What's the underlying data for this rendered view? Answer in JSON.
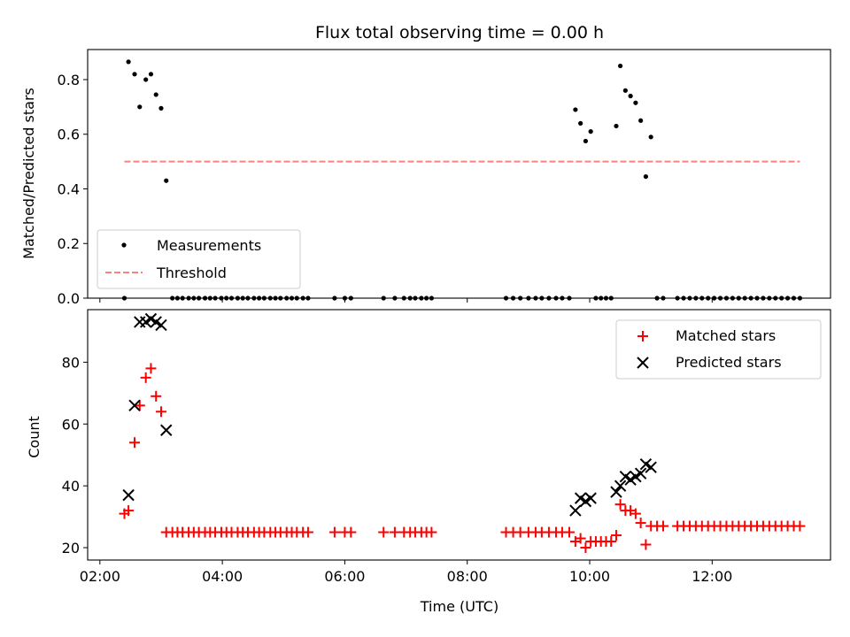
{
  "chart_data": [
    {
      "type": "scatter",
      "title": "Flux total observing time = 0.00 h",
      "xlabel": "",
      "ylabel": "Matched/Predicted stars",
      "xlim": [
        "01:48",
        "13:56"
      ],
      "ylim": [
        0,
        0.91
      ],
      "yticks": [
        "0.0",
        "0.2",
        "0.4",
        "0.6",
        "0.8"
      ],
      "xticks": [
        "02:00",
        "04:00",
        "06:00",
        "08:00",
        "10:00",
        "12:00"
      ],
      "legend_position": "lower-left",
      "series": [
        {
          "name": "Measurements",
          "kind": "scatter",
          "color": "#000000",
          "points": [
            [
              "02:24",
              0.0
            ],
            [
              "02:28",
              0.865
            ],
            [
              "02:34",
              0.82
            ],
            [
              "02:39",
              0.7
            ],
            [
              "02:45",
              0.8
            ],
            [
              "02:50",
              0.82
            ],
            [
              "02:55",
              0.745
            ],
            [
              "03:00",
              0.695
            ],
            [
              "03:05",
              0.43
            ],
            [
              "03:11",
              0.0
            ],
            [
              "03:16",
              0.0
            ],
            [
              "03:21",
              0.0
            ],
            [
              "03:27",
              0.0
            ],
            [
              "03:32",
              0.0
            ],
            [
              "03:37",
              0.0
            ],
            [
              "03:43",
              0.0
            ],
            [
              "03:48",
              0.0
            ],
            [
              "03:53",
              0.0
            ],
            [
              "03:59",
              0.0
            ],
            [
              "04:04",
              0.0
            ],
            [
              "04:09",
              0.0
            ],
            [
              "04:15",
              0.0
            ],
            [
              "04:20",
              0.0
            ],
            [
              "04:25",
              0.0
            ],
            [
              "04:31",
              0.0
            ],
            [
              "04:36",
              0.0
            ],
            [
              "04:41",
              0.0
            ],
            [
              "04:47",
              0.0
            ],
            [
              "04:52",
              0.0
            ],
            [
              "04:57",
              0.0
            ],
            [
              "05:03",
              0.0
            ],
            [
              "05:08",
              0.0
            ],
            [
              "05:13",
              0.0
            ],
            [
              "05:19",
              0.0
            ],
            [
              "05:24",
              0.0
            ],
            [
              "05:50",
              0.0
            ],
            [
              "06:00",
              0.0
            ],
            [
              "06:06",
              0.0
            ],
            [
              "06:38",
              0.0
            ],
            [
              "06:49",
              0.0
            ],
            [
              "06:58",
              0.0
            ],
            [
              "07:04",
              0.0
            ],
            [
              "07:09",
              0.0
            ],
            [
              "07:15",
              0.0
            ],
            [
              "07:20",
              0.0
            ],
            [
              "07:25",
              0.0
            ],
            [
              "08:38",
              0.0
            ],
            [
              "08:45",
              0.0
            ],
            [
              "08:52",
              0.0
            ],
            [
              "09:00",
              0.0
            ],
            [
              "09:07",
              0.0
            ],
            [
              "09:13",
              0.0
            ],
            [
              "09:20",
              0.0
            ],
            [
              "09:27",
              0.0
            ],
            [
              "09:33",
              0.0
            ],
            [
              "09:40",
              0.0
            ],
            [
              "09:46",
              0.69
            ],
            [
              "09:51",
              0.64
            ],
            [
              "09:56",
              0.575
            ],
            [
              "10:01",
              0.61
            ],
            [
              "10:06",
              0.0
            ],
            [
              "10:11",
              0.0
            ],
            [
              "10:16",
              0.0
            ],
            [
              "10:21",
              0.0
            ],
            [
              "10:26",
              0.63
            ],
            [
              "10:30",
              0.85
            ],
            [
              "10:35",
              0.76
            ],
            [
              "10:40",
              0.74
            ],
            [
              "10:45",
              0.715
            ],
            [
              "10:50",
              0.65
            ],
            [
              "10:55",
              0.445
            ],
            [
              "11:00",
              0.59
            ],
            [
              "11:06",
              0.0
            ],
            [
              "11:12",
              0.0
            ],
            [
              "11:26",
              0.0
            ],
            [
              "11:32",
              0.0
            ],
            [
              "11:38",
              0.0
            ],
            [
              "11:44",
              0.0
            ],
            [
              "11:50",
              0.0
            ],
            [
              "11:56",
              0.0
            ],
            [
              "12:02",
              0.0
            ],
            [
              "12:08",
              0.0
            ],
            [
              "12:14",
              0.0
            ],
            [
              "12:20",
              0.0
            ],
            [
              "12:26",
              0.0
            ],
            [
              "12:32",
              0.0
            ],
            [
              "12:38",
              0.0
            ],
            [
              "12:44",
              0.0
            ],
            [
              "12:50",
              0.0
            ],
            [
              "12:56",
              0.0
            ],
            [
              "13:02",
              0.0
            ],
            [
              "13:08",
              0.0
            ],
            [
              "13:14",
              0.0
            ],
            [
              "13:20",
              0.0
            ],
            [
              "13:26",
              0.0
            ]
          ]
        },
        {
          "name": "Threshold",
          "kind": "dashed-line",
          "color": "#ff7f7f",
          "points": [
            [
              "02:24",
              0.5
            ],
            [
              "13:26",
              0.5
            ]
          ]
        }
      ]
    },
    {
      "type": "scatter",
      "title": "",
      "xlabel": "Time (UTC)",
      "ylabel": "Count",
      "xlim": [
        "01:48",
        "13:56"
      ],
      "ylim": [
        16,
        97
      ],
      "yticks": [
        "20",
        "40",
        "60",
        "80"
      ],
      "xticks": [
        "02:00",
        "04:00",
        "06:00",
        "08:00",
        "10:00",
        "12:00"
      ],
      "legend_position": "upper-right",
      "series": [
        {
          "name": "Matched stars",
          "marker": "plus",
          "color": "#ff0000",
          "points": [
            [
              "02:24",
              31
            ],
            [
              "02:28",
              32
            ],
            [
              "02:34",
              54
            ],
            [
              "02:39",
              66
            ],
            [
              "02:45",
              75
            ],
            [
              "02:50",
              78
            ],
            [
              "02:55",
              69
            ],
            [
              "03:00",
              64
            ],
            [
              "03:05",
              25
            ],
            [
              "03:11",
              25
            ],
            [
              "03:16",
              25
            ],
            [
              "03:21",
              25
            ],
            [
              "03:27",
              25
            ],
            [
              "03:32",
              25
            ],
            [
              "03:37",
              25
            ],
            [
              "03:43",
              25
            ],
            [
              "03:48",
              25
            ],
            [
              "03:53",
              25
            ],
            [
              "03:59",
              25
            ],
            [
              "04:04",
              25
            ],
            [
              "04:09",
              25
            ],
            [
              "04:15",
              25
            ],
            [
              "04:20",
              25
            ],
            [
              "04:25",
              25
            ],
            [
              "04:31",
              25
            ],
            [
              "04:36",
              25
            ],
            [
              "04:41",
              25
            ],
            [
              "04:47",
              25
            ],
            [
              "04:52",
              25
            ],
            [
              "04:57",
              25
            ],
            [
              "05:03",
              25
            ],
            [
              "05:08",
              25
            ],
            [
              "05:13",
              25
            ],
            [
              "05:19",
              25
            ],
            [
              "05:24",
              25
            ],
            [
              "05:50",
              25
            ],
            [
              "06:00",
              25
            ],
            [
              "06:06",
              25
            ],
            [
              "06:38",
              25
            ],
            [
              "06:49",
              25
            ],
            [
              "06:58",
              25
            ],
            [
              "07:04",
              25
            ],
            [
              "07:09",
              25
            ],
            [
              "07:15",
              25
            ],
            [
              "07:20",
              25
            ],
            [
              "07:25",
              25
            ],
            [
              "08:38",
              25
            ],
            [
              "08:45",
              25
            ],
            [
              "08:52",
              25
            ],
            [
              "09:00",
              25
            ],
            [
              "09:07",
              25
            ],
            [
              "09:13",
              25
            ],
            [
              "09:20",
              25
            ],
            [
              "09:27",
              25
            ],
            [
              "09:33",
              25
            ],
            [
              "09:40",
              25
            ],
            [
              "09:46",
              22
            ],
            [
              "09:51",
              23
            ],
            [
              "09:56",
              20
            ],
            [
              "10:01",
              22
            ],
            [
              "10:06",
              22
            ],
            [
              "10:11",
              22
            ],
            [
              "10:16",
              22
            ],
            [
              "10:21",
              22
            ],
            [
              "10:26",
              24
            ],
            [
              "10:30",
              34
            ],
            [
              "10:35",
              32
            ],
            [
              "10:40",
              32
            ],
            [
              "10:45",
              31
            ],
            [
              "10:50",
              28
            ],
            [
              "10:55",
              21
            ],
            [
              "11:00",
              27
            ],
            [
              "11:06",
              27
            ],
            [
              "11:12",
              27
            ],
            [
              "11:26",
              27
            ],
            [
              "11:32",
              27
            ],
            [
              "11:38",
              27
            ],
            [
              "11:44",
              27
            ],
            [
              "11:50",
              27
            ],
            [
              "11:56",
              27
            ],
            [
              "12:02",
              27
            ],
            [
              "12:08",
              27
            ],
            [
              "12:14",
              27
            ],
            [
              "12:20",
              27
            ],
            [
              "12:26",
              27
            ],
            [
              "12:32",
              27
            ],
            [
              "12:38",
              27
            ],
            [
              "12:44",
              27
            ],
            [
              "12:50",
              27
            ],
            [
              "12:56",
              27
            ],
            [
              "13:02",
              27
            ],
            [
              "13:08",
              27
            ],
            [
              "13:14",
              27
            ],
            [
              "13:20",
              27
            ],
            [
              "13:26",
              27
            ]
          ]
        },
        {
          "name": "Predicted stars",
          "marker": "x",
          "color": "#000000",
          "points": [
            [
              "02:28",
              37
            ],
            [
              "02:34",
              66
            ],
            [
              "02:39",
              93
            ],
            [
              "02:45",
              93
            ],
            [
              "02:50",
              94
            ],
            [
              "02:55",
              93
            ],
            [
              "03:00",
              92
            ],
            [
              "03:05",
              58
            ],
            [
              "09:46",
              32
            ],
            [
              "09:51",
              36
            ],
            [
              "09:56",
              35
            ],
            [
              "10:01",
              36
            ],
            [
              "10:26",
              38
            ],
            [
              "10:30",
              40
            ],
            [
              "10:35",
              43
            ],
            [
              "10:40",
              42
            ],
            [
              "10:45",
              43
            ],
            [
              "10:50",
              44
            ],
            [
              "10:55",
              47
            ],
            [
              "11:00",
              46
            ]
          ]
        }
      ]
    }
  ]
}
